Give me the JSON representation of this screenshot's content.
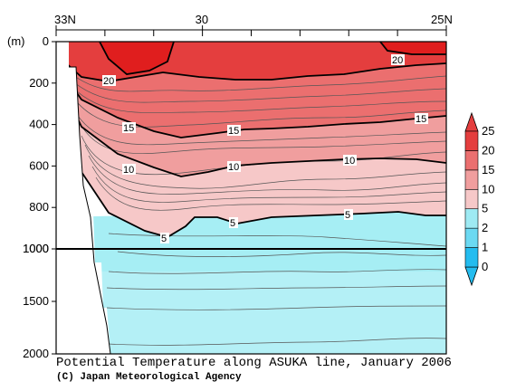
{
  "chart_data": {
    "type": "contour",
    "title": "Potential Temperature along ASUKA line, January 2006",
    "credit": "(C) Japan Meteorological Agency",
    "x_axis": {
      "labels": [
        "33N",
        "30",
        "25N"
      ],
      "values": [
        33,
        30,
        25
      ],
      "direction": "decreasing"
    },
    "y_axis": {
      "unit_label": "(m)",
      "upper_ticks": [
        0,
        200,
        400,
        600,
        800,
        1000
      ],
      "lower_ticks": [
        1500,
        2000
      ],
      "lower_tick_labels": [
        "1000",
        "1500",
        "2000"
      ],
      "inverted": true,
      "scale_break_at": 1000
    },
    "contour_labels": [
      "20",
      "20",
      "15",
      "15",
      "15",
      "10",
      "10",
      "10",
      "5",
      "5",
      "5"
    ],
    "colorbar": {
      "levels": [
        "0",
        "1",
        "2",
        "5",
        "10",
        "15",
        "20",
        "25"
      ],
      "colors": [
        "#24bcef",
        "#6cd9f2",
        "#9eeaf3",
        "#f6c8c8",
        "#f09e9e",
        "#eb6f6f",
        "#e43e3e"
      ]
    },
    "colors": {
      "land": "#ffffff",
      "frame": "#000000"
    }
  }
}
